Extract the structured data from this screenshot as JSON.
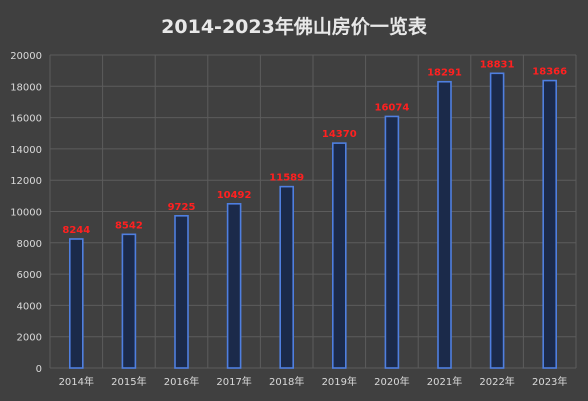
{
  "chart_data": {
    "type": "bar",
    "title": "2014-2023年佛山房价一览表",
    "categories": [
      "2014年",
      "2015年",
      "2016年",
      "2017年",
      "2018年",
      "2019年",
      "2020年",
      "2021年",
      "2022年",
      "2023年"
    ],
    "values": [
      8244,
      8542,
      9725,
      10492,
      11589,
      14370,
      16074,
      18291,
      18831,
      18366
    ],
    "value_labels": [
      "8244",
      "8542",
      "9725",
      "10492",
      "11589",
      "14370",
      "16074",
      "18291",
      "18831",
      "18366"
    ],
    "yticks": [
      "0",
      "2000",
      "4000",
      "6000",
      "8000",
      "10000",
      "12000",
      "14000",
      "16000",
      "18000",
      "20000"
    ],
    "ylim": [
      0,
      20000
    ],
    "xlabel": "",
    "ylabel": "",
    "grid": true,
    "legend": "none",
    "colors": {
      "background": "#404040",
      "gridline": "#5c5c5c",
      "bar_fill": "#1b2a4a",
      "bar_stroke": "#4f7fe0",
      "value_label": "#ff2020",
      "axis_text": "#d9d9d9",
      "title": "#e8e8e8"
    }
  }
}
